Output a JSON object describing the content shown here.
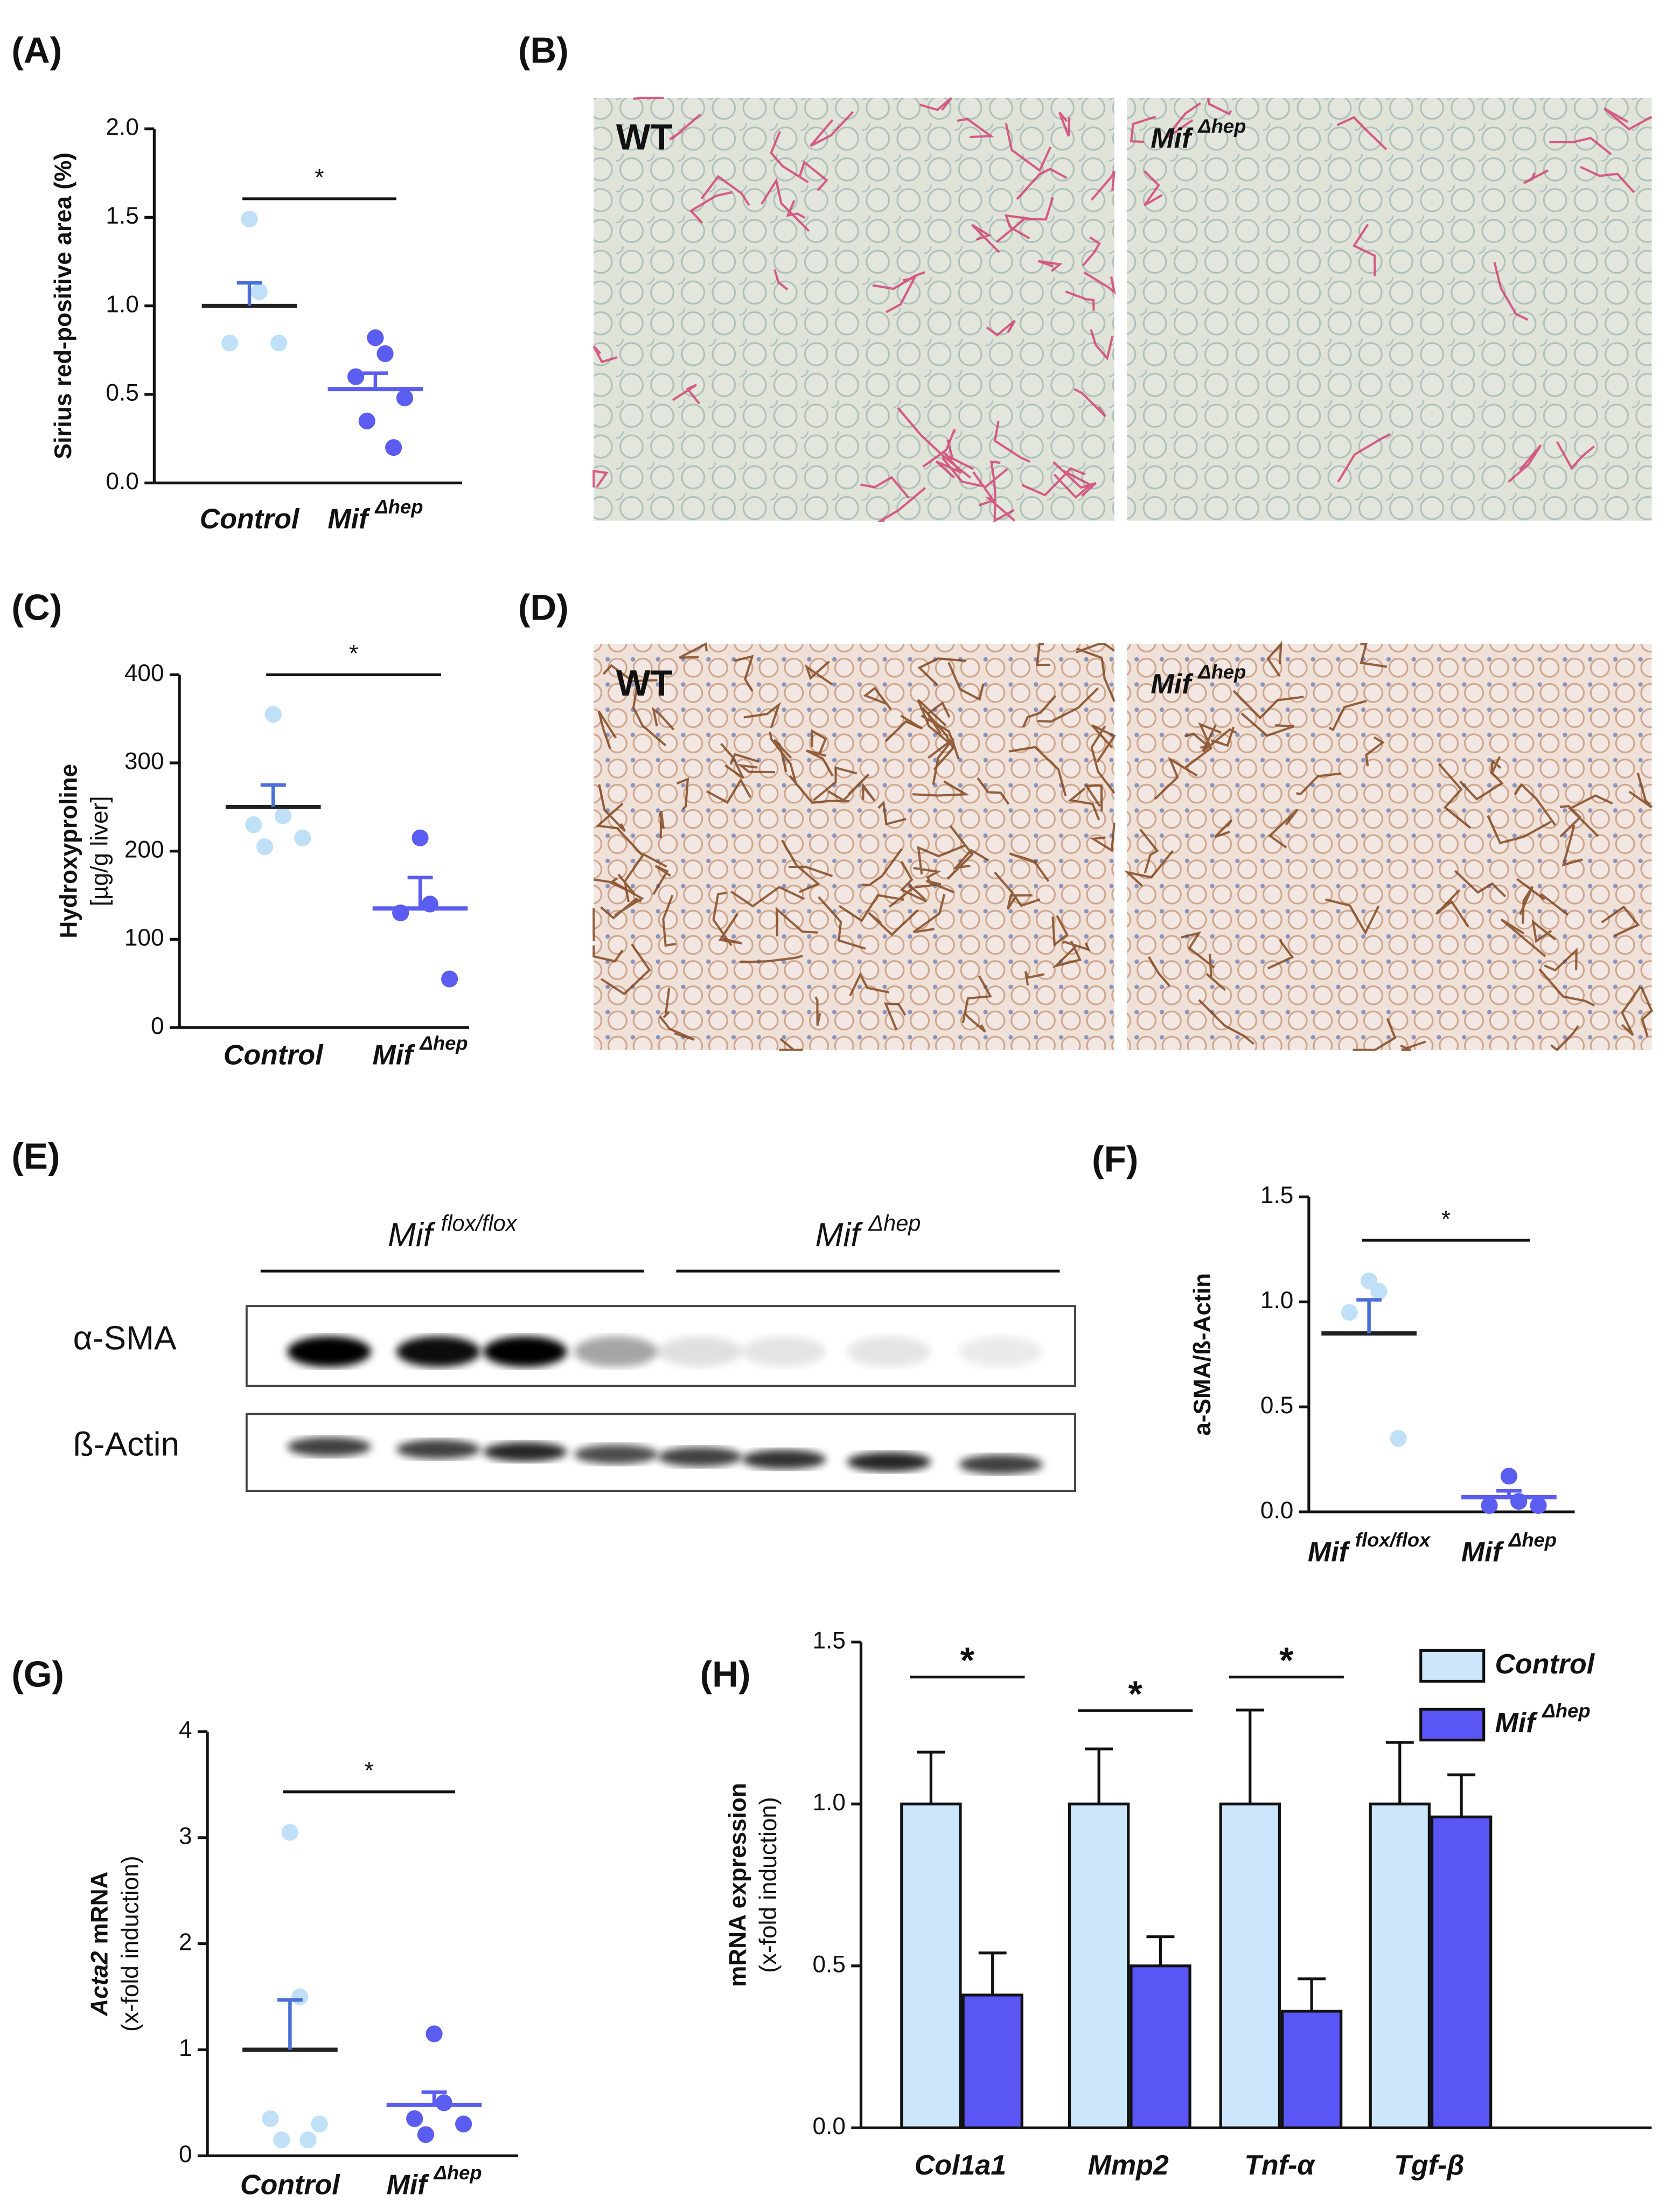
{
  "chart_data": [
    {
      "type": "dot",
      "panel_label": "(A)",
      "ylabel": "Sirius red-positive area (%)",
      "categories": [
        "Control",
        "Mif"
      ],
      "category_sup": [
        null,
        "Δhep"
      ],
      "ylim": [
        0,
        2
      ],
      "yticks": [
        {
          "value": 0,
          "label": "0.0"
        },
        0.5,
        {
          "value": 1,
          "label": "1.0"
        },
        1.5,
        {
          "value": 2,
          "label": "2.0"
        }
      ],
      "groups": [
        {
          "color": "#bfe0f7",
          "values": [
            1.49,
            1.08,
            0.79,
            0.79
          ],
          "mean": 1.0,
          "sem": 0.13
        },
        {
          "color": "#5b5cf0",
          "values": [
            0.82,
            0.73,
            0.6,
            0.48,
            0.35,
            0.2
          ],
          "mean": 0.53,
          "sem": 0.09
        }
      ],
      "significance": "*"
    },
    {
      "type": "dot",
      "panel_label": "(C)",
      "ylabel": "Hydroxyproline",
      "ylabel_line2": "[µg/g liver]",
      "categories": [
        "Control",
        "Mif"
      ],
      "category_sup": [
        null,
        "Δhep"
      ],
      "ylim": [
        0,
        400
      ],
      "yticks": [
        0,
        100,
        200,
        300,
        400
      ],
      "groups": [
        {
          "color": "#bfe0f7",
          "values": [
            355,
            240,
            230,
            215,
            205
          ],
          "mean": 250,
          "sem": 25
        },
        {
          "color": "#5b5cf0",
          "values": [
            215,
            140,
            130,
            55
          ],
          "mean": 135,
          "sem": 35
        }
      ],
      "significance": "*"
    },
    {
      "type": "dot",
      "panel_label": "(F)",
      "ylabel": "a-SMA/ß-Actin",
      "categories": [
        "Mif",
        "Mif"
      ],
      "category_sup": [
        "flox/flox",
        "Δhep"
      ],
      "ylim": [
        0,
        1.5
      ],
      "yticks": [
        {
          "value": 0,
          "label": "0.0"
        },
        0.5,
        {
          "value": 1,
          "label": "1.0"
        },
        1.5
      ],
      "groups": [
        {
          "color": "#bfe0f7",
          "values": [
            1.1,
            1.05,
            0.95,
            0.35
          ],
          "mean": 0.85,
          "sem": 0.16
        },
        {
          "color": "#5b5cf0",
          "values": [
            0.17,
            0.05,
            0.03,
            0.03
          ],
          "mean": 0.07,
          "sem": 0.03
        }
      ],
      "significance": "*"
    },
    {
      "type": "dot",
      "panel_label": "(G)",
      "ylabel_prefix": "Acta2",
      "ylabel": "mRNA",
      "ylabel_line2": "(x-fold induction)",
      "categories": [
        "Control",
        "Mif"
      ],
      "category_sup": [
        null,
        "Δhep"
      ],
      "ylim": [
        0,
        4
      ],
      "yticks": [
        0,
        1,
        2,
        3,
        4
      ],
      "groups": [
        {
          "color": "#bfe0f7",
          "values": [
            3.05,
            1.5,
            0.35,
            0.3,
            0.15,
            0.15
          ],
          "mean": 1.0,
          "sem": 0.47
        },
        {
          "color": "#5b5cf0",
          "values": [
            1.15,
            0.5,
            0.35,
            0.3,
            0.2
          ],
          "mean": 0.48,
          "sem": 0.12
        }
      ],
      "significance": "*"
    },
    {
      "type": "bar",
      "panel_label": "(H)",
      "ylabel": "mRNA expression",
      "ylabel_line2": "(x-fold induction)",
      "categories": [
        "Col1a1",
        "Mmp2",
        "Tnf-α",
        "Tgf-β"
      ],
      "ylim": [
        0,
        1.5
      ],
      "yticks": [
        {
          "value": 0,
          "label": "0.0"
        },
        0.5,
        {
          "value": 1,
          "label": "1.0"
        },
        1.5
      ],
      "series": [
        {
          "name": "Control",
          "color": "#cce6fb",
          "values": [
            1,
            1,
            1,
            1
          ],
          "errors": [
            0.16,
            0.17,
            0.29,
            0.19
          ]
        },
        {
          "name": "Mif",
          "name_sup": "Δhep",
          "color": "#5a55f5",
          "values": [
            0.41,
            0.5,
            0.36,
            0.96
          ],
          "errors": [
            0.13,
            0.09,
            0.1,
            0.13
          ]
        }
      ],
      "significance": [
        "*",
        "*",
        "*"
      ]
    }
  ],
  "micrographs": [
    {
      "panel_label": "(B)",
      "left_label": "WT",
      "right_label": "Mif",
      "right_label_sup": "Δhep"
    },
    {
      "panel_label": "(D)",
      "left_label": "WT",
      "right_label": "Mif",
      "right_label_sup": "Δhep"
    }
  ],
  "blot": {
    "panel_label": "(E)",
    "groups": [
      {
        "label": "Mif",
        "sup": "flox/flox"
      },
      {
        "label": "Mif",
        "sup": "Δhep"
      }
    ],
    "rows": [
      "α-SMA",
      "ß-Actin"
    ]
  }
}
